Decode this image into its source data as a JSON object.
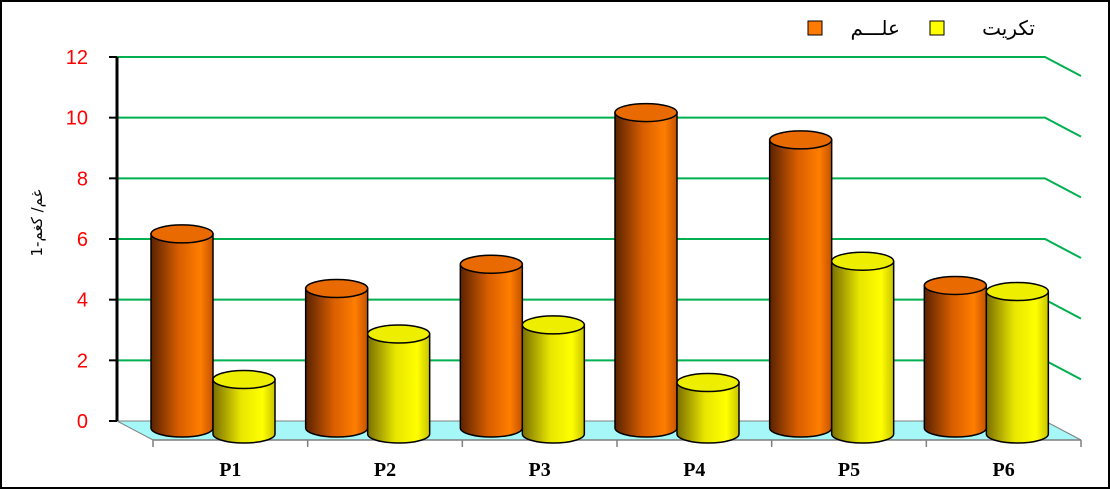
{
  "chart_data": {
    "type": "bar",
    "categories": [
      "P1",
      "P2",
      "P3",
      "P4",
      "P5",
      "P6"
    ],
    "series": [
      {
        "name": "علـــم",
        "color": "#ff7a00",
        "values": [
          6.3,
          4.5,
          5.3,
          10.3,
          9.4,
          4.6
        ]
      },
      {
        "name": "تكريت",
        "color": "#ffff00",
        "values": [
          1.5,
          3.0,
          3.3,
          1.4,
          5.4,
          4.4
        ]
      }
    ],
    "ylabel": "غم/ كغم-1",
    "ylim": [
      0,
      12
    ],
    "yticks": [
      0,
      2,
      4,
      6,
      8,
      10,
      12
    ],
    "grid": true,
    "legend": "top-right",
    "colors": {
      "grid": "#00b050",
      "floor": "#a6f7f7",
      "tick": "#ff0000"
    }
  }
}
